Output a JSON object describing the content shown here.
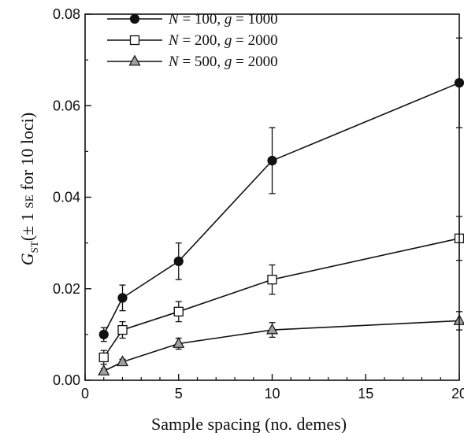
{
  "chart_data": {
    "type": "line",
    "title": "",
    "xlabel": "Sample spacing (no. demes)",
    "ylabel": {
      "symbol": "G",
      "subscript": "ST",
      "rest_prefix": "(± 1 ",
      "rest_sc": "SE",
      "rest_suffix": " for 10 loci)"
    },
    "xlim": [
      0,
      20
    ],
    "ylim": [
      0,
      0.08
    ],
    "xticks": [
      0,
      5,
      10,
      15,
      20
    ],
    "yticks": [
      0.0,
      0.02,
      0.04,
      0.06,
      0.08
    ],
    "xtick_labels": [
      "0",
      "5",
      "10",
      "15",
      "20"
    ],
    "ytick_labels": [
      "0.00",
      "0.02",
      "0.04",
      "0.06",
      "0.08"
    ],
    "x": [
      1,
      2,
      5,
      10,
      20
    ],
    "grid": false,
    "legend_position": "top-left",
    "series": [
      {
        "legend": {
          "n_label": "N",
          "n_value": " = 100, ",
          "g_label": "g",
          "g_value": " = 1000"
        },
        "marker": "filled-circle",
        "color": "#111111",
        "values": [
          0.01,
          0.018,
          0.026,
          0.048,
          0.065
        ],
        "errors": [
          0.0015,
          0.0028,
          0.004,
          0.0072,
          0.0098
        ]
      },
      {
        "legend": {
          "n_label": "N",
          "n_value": " = 200, ",
          "g_label": "g",
          "g_value": " = 2000"
        },
        "marker": "open-square",
        "color": "#ffffff",
        "values": [
          0.005,
          0.011,
          0.015,
          0.022,
          0.031
        ],
        "errors": [
          0.0015,
          0.0018,
          0.0022,
          0.0032,
          0.0048
        ]
      },
      {
        "legend": {
          "n_label": "N",
          "n_value": " = 500, ",
          "g_label": "g",
          "g_value": " = 2000"
        },
        "marker": "gray-triangle",
        "color": "#a0a0a0",
        "values": [
          0.002,
          0.004,
          0.008,
          0.011,
          0.013
        ],
        "errors": [
          0.0005,
          0.0006,
          0.0012,
          0.0016,
          0.002
        ]
      }
    ]
  }
}
